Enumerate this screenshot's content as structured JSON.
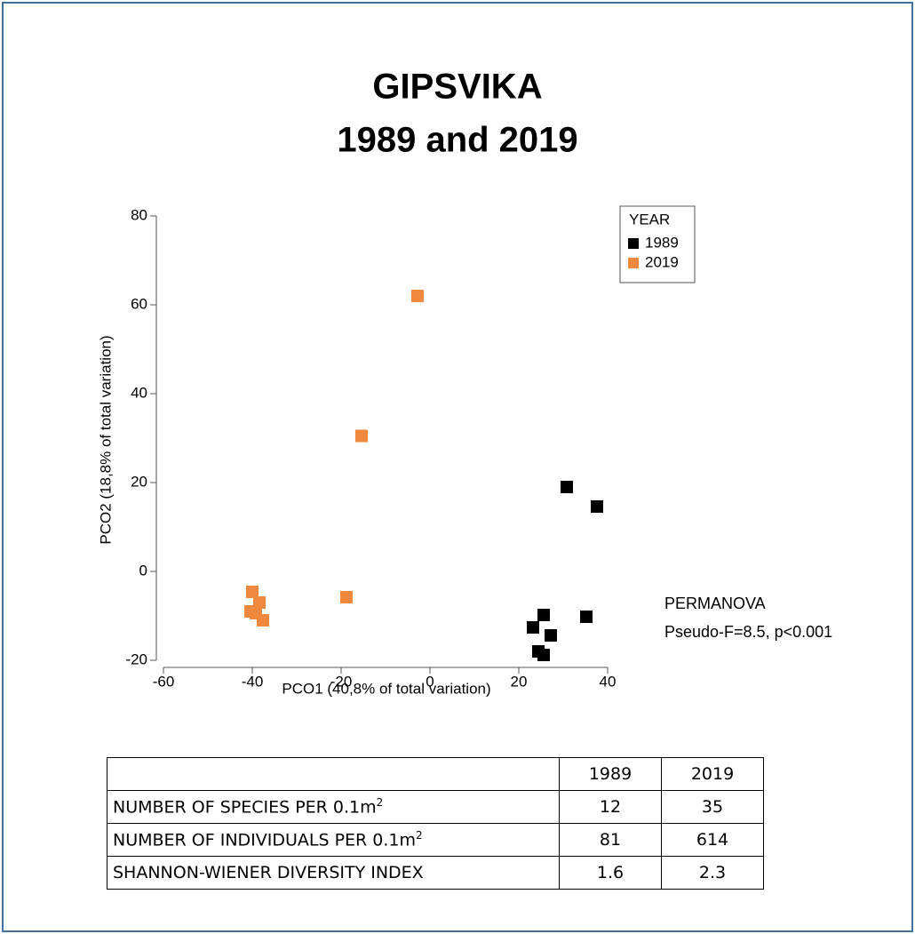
{
  "chart_data": {
    "type": "scatter",
    "title": "GIPSVIKA",
    "subtitle": "1989 and 2019",
    "xlabel": "PCO1 (40,8% of total variation)",
    "ylabel": "PCO2 (18,8% of total variation)",
    "xlim": [
      -60,
      40
    ],
    "xticks": [
      -60,
      -40,
      -20,
      0,
      20,
      40
    ],
    "ylim": [
      -20,
      80
    ],
    "yticks": [
      -20,
      0,
      20,
      40,
      60,
      80
    ],
    "grid": false,
    "legend_title": "YEAR",
    "legend_position": "upper right",
    "series": [
      {
        "name": "1989",
        "color": "#000000",
        "x": [
          30.8,
          37.6,
          35.2,
          25.6,
          23.2,
          27.2,
          24.4,
          25.6
        ],
        "values": [
          19,
          14.6,
          -10.2,
          -9.8,
          -12.6,
          -14.4,
          -18,
          -18.8
        ]
      },
      {
        "name": "2019",
        "color": "#f0883e",
        "x": [
          -2.8,
          -15.4,
          -18.8,
          -40,
          -38.4,
          -40.4,
          -39.2,
          -37.6
        ],
        "values": [
          62,
          30.5,
          -5.8,
          -4.6,
          -7,
          -9,
          -9.4,
          -11
        ]
      }
    ],
    "annotations": [
      "PERMANOVA",
      "Pseudo-F=8.5, p<0.001"
    ]
  },
  "table": {
    "header": [
      "1989",
      "2019"
    ],
    "rows": [
      {
        "label": "NUMBER OF SPECIES PER 0.1m",
        "sup": "2",
        "values": [
          12,
          35
        ]
      },
      {
        "label": "NUMBER OF INDIVIDUALS PER 0.1m",
        "sup": "2",
        "values": [
          81,
          614
        ]
      },
      {
        "label": "SHANNON-WIENER DIVERSITY INDEX",
        "values": [
          1.6,
          2.3
        ]
      }
    ]
  }
}
